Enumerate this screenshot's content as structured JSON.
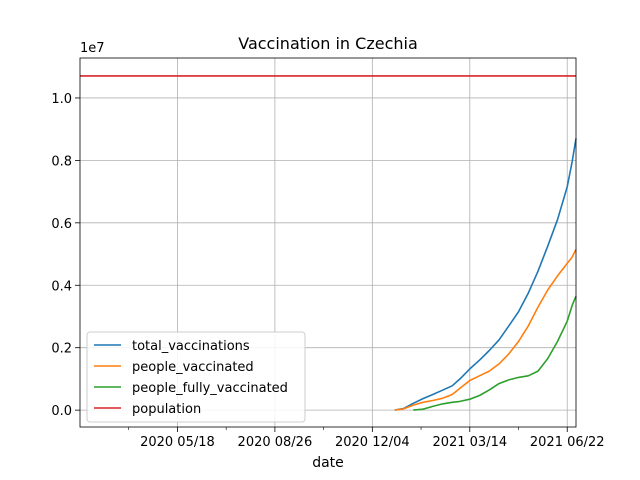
{
  "chart_data": {
    "type": "line",
    "title": "Vaccination in Czechia",
    "xlabel": "date",
    "ylabel": "",
    "y_offset_text": "1e7",
    "y_tick_labels": [
      "0.0",
      "0.2",
      "0.4",
      "0.6",
      "0.8",
      "1.0"
    ],
    "y_tick_values": [
      0,
      0.2,
      0.4,
      0.6,
      0.8,
      1.0
    ],
    "ylim": [
      -0.054,
      1.128
    ],
    "xlim": [
      "2020-02-08",
      "2021-07-01"
    ],
    "x_tick_labels": [
      "2020 05/18",
      "2020 08/26",
      "2020 12/04",
      "2021 03/14",
      "2021 06/22"
    ],
    "x_tick_dates": [
      "2020-05-18",
      "2020-08-26",
      "2020-12-04",
      "2021-03-14",
      "2021-06-22"
    ],
    "grid": true,
    "legend_position": "lower-left",
    "series": [
      {
        "name": "total_vaccinations",
        "color": "#1f77b4",
        "points": [
          [
            "2020-12-27",
            0.0
          ],
          [
            "2021-01-05",
            0.005
          ],
          [
            "2021-01-15",
            0.022
          ],
          [
            "2021-01-25",
            0.037
          ],
          [
            "2021-02-04",
            0.05
          ],
          [
            "2021-02-14",
            0.064
          ],
          [
            "2021-02-24",
            0.078
          ],
          [
            "2021-03-04",
            0.1
          ],
          [
            "2021-03-14",
            0.132
          ],
          [
            "2021-03-24",
            0.16
          ],
          [
            "2021-04-03",
            0.191
          ],
          [
            "2021-04-13",
            0.225
          ],
          [
            "2021-04-23",
            0.27
          ],
          [
            "2021-05-03",
            0.315
          ],
          [
            "2021-05-13",
            0.375
          ],
          [
            "2021-05-23",
            0.445
          ],
          [
            "2021-06-02",
            0.525
          ],
          [
            "2021-06-12",
            0.61
          ],
          [
            "2021-06-22",
            0.715
          ],
          [
            "2021-06-27",
            0.795
          ],
          [
            "2021-07-01",
            0.87
          ]
        ]
      },
      {
        "name": "people_vaccinated",
        "color": "#ff7f0e",
        "points": [
          [
            "2020-12-27",
            0.0
          ],
          [
            "2021-01-05",
            0.004
          ],
          [
            "2021-01-15",
            0.016
          ],
          [
            "2021-01-25",
            0.025
          ],
          [
            "2021-02-04",
            0.031
          ],
          [
            "2021-02-14",
            0.038
          ],
          [
            "2021-02-24",
            0.05
          ],
          [
            "2021-03-04",
            0.07
          ],
          [
            "2021-03-14",
            0.095
          ],
          [
            "2021-03-24",
            0.11
          ],
          [
            "2021-04-03",
            0.125
          ],
          [
            "2021-04-13",
            0.148
          ],
          [
            "2021-04-23",
            0.18
          ],
          [
            "2021-05-03",
            0.22
          ],
          [
            "2021-05-13",
            0.27
          ],
          [
            "2021-05-23",
            0.33
          ],
          [
            "2021-06-02",
            0.385
          ],
          [
            "2021-06-12",
            0.43
          ],
          [
            "2021-06-22",
            0.47
          ],
          [
            "2021-06-27",
            0.49
          ],
          [
            "2021-07-01",
            0.515
          ]
        ]
      },
      {
        "name": "people_fully_vaccinated",
        "color": "#2ca02c",
        "points": [
          [
            "2021-01-15",
            0.0
          ],
          [
            "2021-01-25",
            0.003
          ],
          [
            "2021-02-04",
            0.012
          ],
          [
            "2021-02-14",
            0.02
          ],
          [
            "2021-02-24",
            0.025
          ],
          [
            "2021-03-04",
            0.028
          ],
          [
            "2021-03-14",
            0.035
          ],
          [
            "2021-03-24",
            0.047
          ],
          [
            "2021-04-03",
            0.065
          ],
          [
            "2021-04-13",
            0.085
          ],
          [
            "2021-04-23",
            0.097
          ],
          [
            "2021-05-03",
            0.105
          ],
          [
            "2021-05-13",
            0.11
          ],
          [
            "2021-05-23",
            0.125
          ],
          [
            "2021-06-02",
            0.165
          ],
          [
            "2021-06-12",
            0.22
          ],
          [
            "2021-06-22",
            0.285
          ],
          [
            "2021-06-27",
            0.335
          ],
          [
            "2021-07-01",
            0.365
          ]
        ]
      },
      {
        "name": "population",
        "color": "#d62728",
        "points": [
          [
            "2020-02-08",
            1.0707
          ],
          [
            "2021-07-01",
            1.0707
          ]
        ]
      }
    ]
  }
}
